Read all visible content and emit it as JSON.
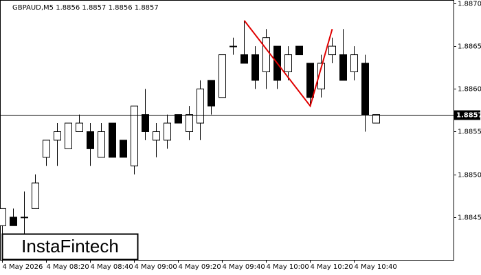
{
  "chart_data": {
    "type": "candlestick",
    "symbol": "GBPAUD,M5",
    "header_ohlc": [
      1.8856,
      1.8857,
      1.8856,
      1.8857
    ],
    "categories": [
      "4 May 2026",
      null,
      null,
      null,
      "4 May 08:20",
      null,
      null,
      null,
      "4 May 08:40",
      null,
      null,
      null,
      "4 May 09:00",
      null,
      null,
      null,
      "4 May 09:20",
      null,
      null,
      null,
      "4 May 09:40",
      null,
      null,
      null,
      "4 May 10:00",
      null,
      null,
      null,
      "4 May 10:20",
      null,
      null,
      null,
      "4 May 10:40",
      null,
      null
    ],
    "open": [
      1.8844,
      1.8845,
      1.8845,
      1.8846,
      1.8852,
      1.8854,
      1.8853,
      1.8855,
      1.8855,
      1.8852,
      1.8856,
      1.8854,
      1.8851,
      1.8857,
      1.8854,
      1.8854,
      1.8857,
      1.8855,
      1.8856,
      1.8861,
      1.8859,
      1.8865,
      1.8864,
      1.8864,
      1.8862,
      1.8865,
      1.8862,
      1.8865,
      1.8863,
      1.886,
      1.8864,
      1.8864,
      1.8862,
      1.8863,
      1.8856
    ],
    "high": [
      1.8846,
      1.8846,
      1.8848,
      1.885,
      1.8854,
      1.8856,
      1.8856,
      1.8857,
      1.8856,
      1.8856,
      1.8856,
      1.8854,
      1.8858,
      1.886,
      1.8856,
      1.8857,
      1.8857,
      1.8858,
      1.8861,
      1.8861,
      1.8864,
      1.8866,
      1.8868,
      1.8865,
      1.8867,
      1.8865,
      1.8865,
      1.8865,
      1.8863,
      1.8864,
      1.8866,
      1.8867,
      1.8865,
      1.8864,
      1.8857
    ],
    "low": [
      1.8843,
      1.8844,
      1.8843,
      1.8846,
      1.8851,
      1.8851,
      1.8853,
      1.8855,
      1.8851,
      1.8852,
      1.8852,
      1.8852,
      1.885,
      1.8854,
      1.8852,
      1.8853,
      1.8856,
      1.8854,
      1.8854,
      1.8857,
      1.8859,
      1.8864,
      1.8863,
      1.886,
      1.886,
      1.886,
      1.8861,
      1.8864,
      1.8858,
      1.8859,
      1.8863,
      1.8861,
      1.8861,
      1.8855,
      1.8856
    ],
    "close": [
      1.8846,
      1.8844,
      1.8845,
      1.8849,
      1.8854,
      1.8855,
      1.8856,
      1.8856,
      1.8853,
      1.8855,
      1.8852,
      1.8852,
      1.8858,
      1.8855,
      1.8855,
      1.8856,
      1.8856,
      1.8857,
      1.886,
      1.8858,
      1.8864,
      1.8865,
      1.8863,
      1.8861,
      1.8866,
      1.8861,
      1.8864,
      1.8864,
      1.8859,
      1.8863,
      1.8865,
      1.8861,
      1.8864,
      1.8857,
      1.8857
    ],
    "up_color": "#ffffff",
    "down_color": "#000000",
    "pattern": {
      "x": [
        22,
        28,
        30
      ],
      "values": [
        1.8868,
        1.8858,
        1.8867
      ],
      "color": "#e00000"
    },
    "last_price": 1.8857,
    "ylim": [
      1.884,
      1.88704
    ],
    "yticks": [
      1.8845,
      {
        "value": 1.885,
        "label": "1.8850"
      },
      1.8855,
      {
        "value": 1.886,
        "label": "1.8860"
      },
      1.8865,
      {
        "value": 1.887,
        "label": "1.8870"
      }
    ],
    "watermark": "InstaFintech"
  }
}
